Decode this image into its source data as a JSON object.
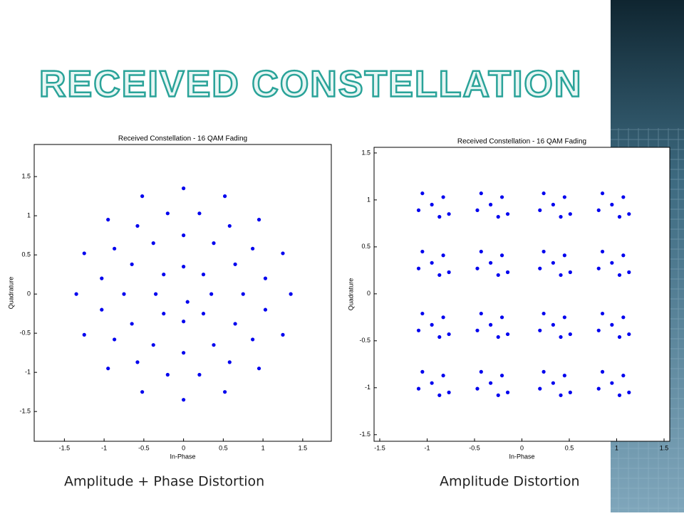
{
  "slide": {
    "title": "RECEIVED CONSTELLATION",
    "captions": [
      "Amplitude + Phase Distortion",
      "Amplitude Distortion"
    ]
  },
  "chart_data": [
    {
      "type": "scatter",
      "title": "Received Constellation - 16 QAM Fading",
      "x_label": "In-Phase",
      "y_label": "Quadrature",
      "color": "#0000ee",
      "xlim": [
        -1.88,
        1.86
      ],
      "ylim": [
        -1.88,
        1.91
      ],
      "xticks": [
        -1.5,
        -1,
        -0.5,
        0,
        0.5,
        1,
        1.5
      ],
      "yticks": [
        -1.5,
        -1,
        -0.5,
        0,
        0.5,
        1,
        1.5
      ],
      "x": [
        0.05,
        0.35,
        0.25,
        0,
        -0.25,
        -0.35,
        -0.25,
        0,
        0.25,
        0.75,
        0.65,
        0.38,
        0,
        -0.38,
        -0.65,
        -0.75,
        -0.65,
        -0.38,
        0,
        0.38,
        0.65,
        1.03,
        0.87,
        0.58,
        0.2,
        -0.2,
        -0.58,
        -0.87,
        -1.03,
        -1.03,
        -0.87,
        -0.58,
        -0.2,
        0.2,
        0.58,
        0.87,
        1.03,
        1.35,
        1.25,
        0.95,
        0.52,
        0,
        -0.52,
        -0.95,
        -1.25,
        -1.35,
        -1.25,
        -0.95,
        -0.52,
        0,
        0.52,
        0.95,
        1.25
      ],
      "y": [
        -0.1,
        0,
        0.25,
        0.35,
        0.25,
        0,
        -0.25,
        -0.35,
        -0.25,
        0,
        0.38,
        0.65,
        0.75,
        0.65,
        0.38,
        0,
        -0.38,
        -0.65,
        -0.75,
        -0.65,
        -0.38,
        0.2,
        0.58,
        0.87,
        1.03,
        1.03,
        0.87,
        0.58,
        0.2,
        -0.2,
        -0.58,
        -0.87,
        -1.03,
        -1.03,
        -0.87,
        -0.58,
        -0.2,
        0,
        0.52,
        0.95,
        1.25,
        1.35,
        1.25,
        0.95,
        0.52,
        0,
        -0.52,
        -0.95,
        -1.25,
        -1.35,
        -1.25,
        -0.95,
        -0.52
      ]
    },
    {
      "type": "scatter",
      "title": "Received Constellation - 16 QAM Fading",
      "x_label": "In-Phase",
      "y_label": "Quadrature",
      "color": "#0000ee",
      "xlim": [
        -1.56,
        1.56
      ],
      "ylim": [
        -1.57,
        1.56
      ],
      "xticks": [
        -1.5,
        -1,
        -0.5,
        0,
        0.5,
        1,
        1.5
      ],
      "yticks": [
        -1.5,
        -1,
        -0.5,
        0,
        0.5,
        1,
        1.5
      ],
      "x": [
        -0.95,
        -0.83,
        -1.05,
        -0.87,
        -1.09,
        -0.77,
        -0.33,
        -0.21,
        -0.43,
        -0.25,
        -0.47,
        -0.15,
        0.33,
        0.45,
        0.23,
        0.41,
        0.19,
        0.51,
        0.95,
        1.07,
        0.85,
        1.03,
        0.81,
        1.13,
        -0.95,
        -0.83,
        -1.05,
        -0.87,
        -1.09,
        -0.77,
        -0.33,
        -0.21,
        -0.43,
        -0.25,
        -0.47,
        -0.15,
        0.33,
        0.45,
        0.23,
        0.41,
        0.19,
        0.51,
        0.95,
        1.07,
        0.85,
        1.03,
        0.81,
        1.13,
        -0.95,
        -0.83,
        -1.05,
        -0.87,
        -1.09,
        -0.77,
        -0.33,
        -0.21,
        -0.43,
        -0.25,
        -0.47,
        -0.15,
        0.33,
        0.45,
        0.23,
        0.41,
        0.19,
        0.51,
        0.95,
        1.07,
        0.85,
        1.03,
        0.81,
        1.13,
        -0.95,
        -0.83,
        -1.05,
        -0.87,
        -1.09,
        -0.77,
        -0.33,
        -0.21,
        -0.43,
        -0.25,
        -0.47,
        -0.15,
        0.33,
        0.45,
        0.23,
        0.41,
        0.19,
        0.51,
        0.95,
        1.07,
        0.85,
        1.03,
        0.81,
        1.13
      ],
      "y": [
        0.95,
        1.03,
        1.07,
        0.82,
        0.89,
        0.85,
        0.95,
        1.03,
        1.07,
        0.82,
        0.89,
        0.85,
        0.95,
        1.03,
        1.07,
        0.82,
        0.89,
        0.85,
        0.95,
        1.03,
        1.07,
        0.82,
        0.89,
        0.85,
        0.33,
        0.41,
        0.45,
        0.2,
        0.27,
        0.23,
        0.33,
        0.41,
        0.45,
        0.2,
        0.27,
        0.23,
        0.33,
        0.41,
        0.45,
        0.2,
        0.27,
        0.23,
        0.33,
        0.41,
        0.45,
        0.2,
        0.27,
        0.23,
        -0.33,
        -0.25,
        -0.21,
        -0.46,
        -0.39,
        -0.43,
        -0.33,
        -0.25,
        -0.21,
        -0.46,
        -0.39,
        -0.43,
        -0.33,
        -0.25,
        -0.21,
        -0.46,
        -0.39,
        -0.43,
        -0.33,
        -0.25,
        -0.21,
        -0.46,
        -0.39,
        -0.43,
        -0.95,
        -0.87,
        -0.83,
        -1.08,
        -1.01,
        -1.05,
        -0.95,
        -0.87,
        -0.83,
        -1.08,
        -1.01,
        -1.05,
        -0.95,
        -0.87,
        -0.83,
        -1.08,
        -1.01,
        -1.05,
        -0.95,
        -0.87,
        -0.83,
        -1.08,
        -1.01,
        -1.05
      ]
    }
  ]
}
